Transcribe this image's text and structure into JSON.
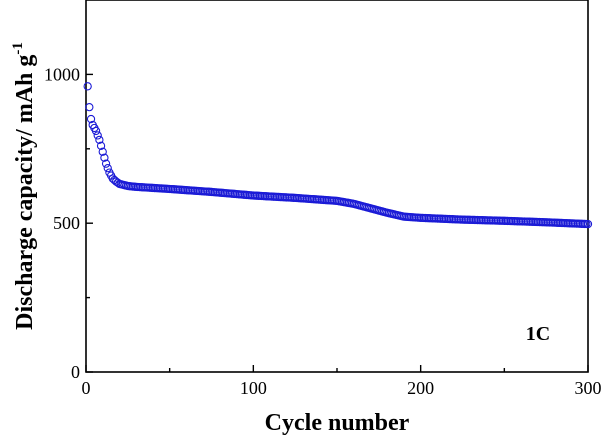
{
  "chart_data": {
    "type": "scatter",
    "xlabel": "Cycle number",
    "ylabel": "Discharge capacity/ mAh g",
    "ylabel_sup": "-1",
    "annotation": "1C",
    "xlim": [
      0,
      300
    ],
    "ylim": [
      0,
      1250
    ],
    "x_ticks": [
      0,
      100,
      200,
      300
    ],
    "y_ticks": [
      0,
      500,
      1000
    ],
    "grid": false,
    "marker_color": "#1a1ad6",
    "anchors": [
      [
        1,
        960
      ],
      [
        2,
        890
      ],
      [
        3,
        850
      ],
      [
        4,
        830
      ],
      [
        5,
        820
      ],
      [
        6,
        810
      ],
      [
        8,
        780
      ],
      [
        10,
        740
      ],
      [
        12,
        700
      ],
      [
        14,
        670
      ],
      [
        16,
        650
      ],
      [
        18,
        640
      ],
      [
        20,
        632
      ],
      [
        25,
        625
      ],
      [
        30,
        622
      ],
      [
        50,
        615
      ],
      [
        75,
        605
      ],
      [
        100,
        593
      ],
      [
        125,
        585
      ],
      [
        150,
        575
      ],
      [
        160,
        565
      ],
      [
        170,
        550
      ],
      [
        180,
        535
      ],
      [
        190,
        522
      ],
      [
        200,
        518
      ],
      [
        225,
        512
      ],
      [
        250,
        508
      ],
      [
        275,
        503
      ],
      [
        300,
        497
      ]
    ]
  }
}
